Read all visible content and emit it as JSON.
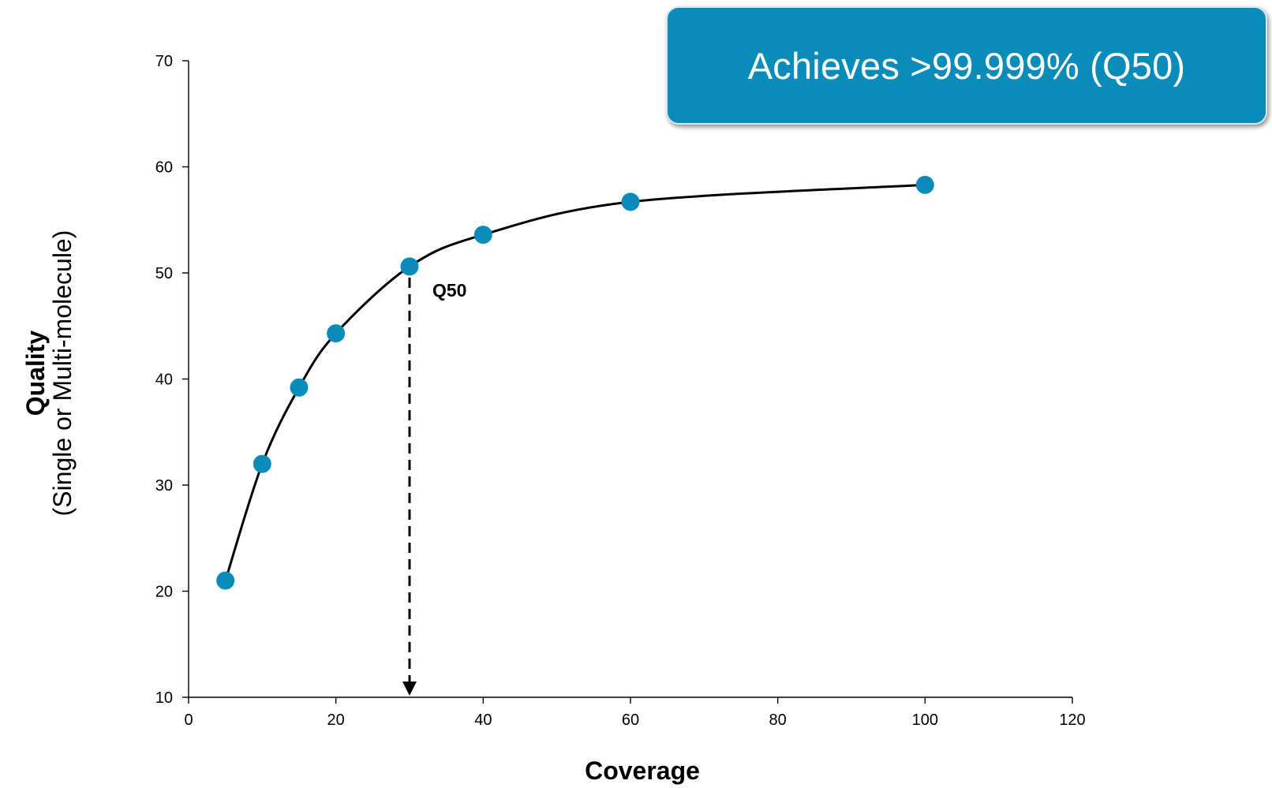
{
  "callout": {
    "text": "Achieves >99.999% (Q50)",
    "background_color": "#0a8cba"
  },
  "chart_data": {
    "type": "line",
    "title": "",
    "xlabel": "Coverage",
    "ylabel": "Quality",
    "ylabel_sub": "(Single or Multi-molecule)",
    "xlim": [
      0,
      120
    ],
    "ylim": [
      10,
      70
    ],
    "xticks": [
      0,
      20,
      40,
      60,
      80,
      100,
      120
    ],
    "yticks": [
      10,
      20,
      30,
      40,
      50,
      60,
      70
    ],
    "grid": false,
    "legend": "none",
    "series": [
      {
        "x": [
          5,
          10,
          15,
          20,
          30,
          40,
          60,
          100
        ],
        "y": [
          21,
          32,
          39.2,
          44.3,
          50.6,
          53.6,
          56.7,
          58.3
        ],
        "marker_color": "#0a8cba",
        "line_color": "#000000"
      }
    ],
    "annotations": [
      {
        "label": "Q50",
        "x": 30,
        "y_from": 50.6,
        "y_to": 10,
        "style": "dashed-arrow-down"
      }
    ]
  }
}
